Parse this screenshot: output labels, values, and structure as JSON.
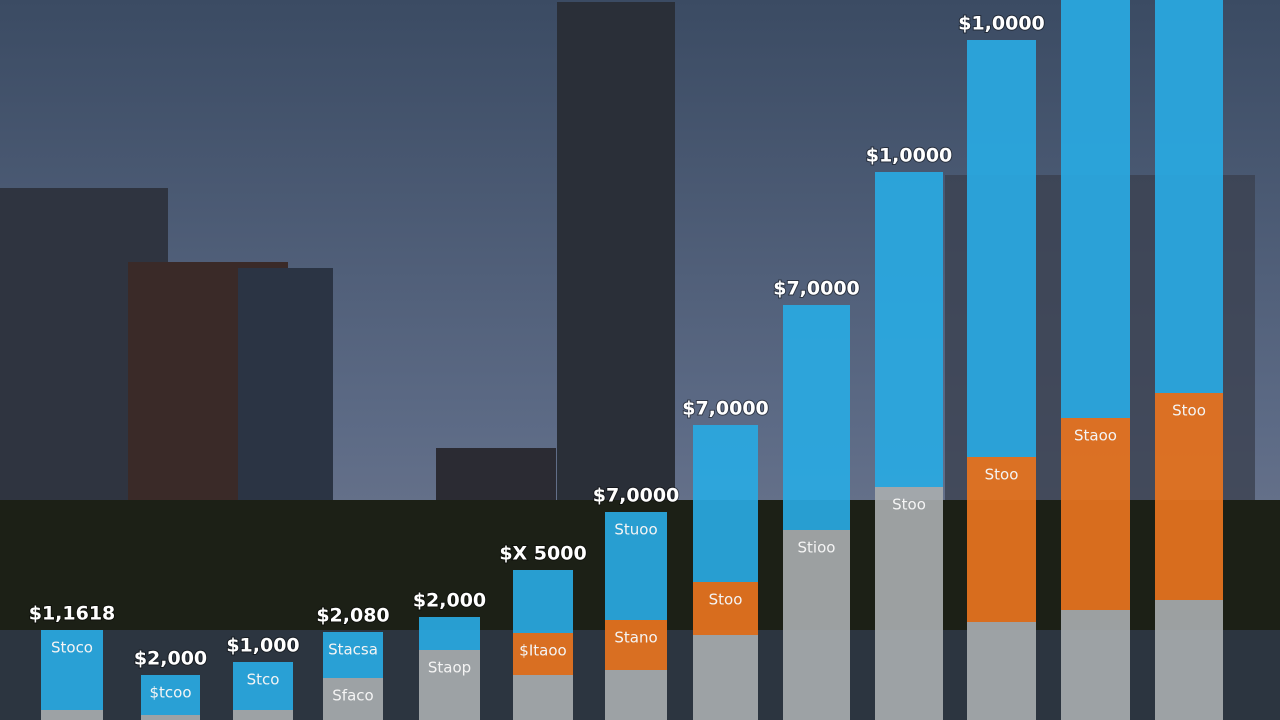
{
  "chart_data": {
    "type": "bar",
    "stacked": true,
    "categories": [
      null,
      null,
      null,
      null,
      null,
      null,
      null,
      null,
      null,
      null,
      null,
      null,
      null
    ],
    "ylim": [
      0,
      720
    ],
    "top_labels": [
      "$1,1618",
      "$2,000",
      "$1,000",
      "$2,080",
      "$2,000",
      "$X 5000",
      "$7,0000",
      "$7,0000",
      "$7,0000",
      "$1,0000",
      "$1,0000",
      null,
      null
    ],
    "series": [
      {
        "color": "#a7abae",
        "values": [
          10,
          5,
          10,
          42,
          70,
          45,
          50,
          85,
          190,
          233,
          98,
          110,
          120
        ],
        "labels": [
          null,
          null,
          null,
          "Sfaco",
          "Staop",
          null,
          null,
          null,
          "Stioo",
          "Stoo",
          null,
          null,
          null
        ]
      },
      {
        "color": "#e8741f",
        "values": [
          0,
          0,
          0,
          0,
          0,
          42,
          50,
          53,
          0,
          0,
          165,
          192,
          207
        ],
        "labels": [
          null,
          null,
          null,
          null,
          null,
          "$Itaoo",
          "Stano",
          "Stoo",
          null,
          null,
          "Stoo",
          "Staoo",
          "Stoo"
        ]
      },
      {
        "color": "#29a9e2",
        "values": [
          80,
          40,
          48,
          46,
          33,
          63,
          108,
          157,
          225,
          315,
          417,
          418,
          393
        ],
        "labels": [
          "Stoco",
          "$tcoo",
          "Stco",
          "Stacsa",
          null,
          null,
          "Stuoo",
          null,
          null,
          null,
          null,
          null,
          null
        ]
      }
    ]
  }
}
